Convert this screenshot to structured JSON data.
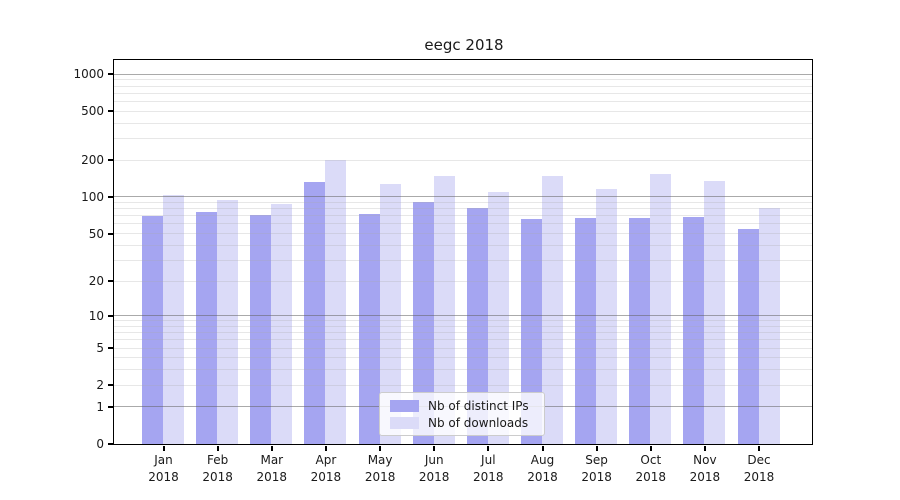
{
  "title": "eegc 2018",
  "chart_data": {
    "type": "bar",
    "title": "eegc 2018",
    "xlabel": "",
    "ylabel": "",
    "year_label": "2018",
    "categories": [
      "Jan",
      "Feb",
      "Mar",
      "Apr",
      "May",
      "Jun",
      "Jul",
      "Aug",
      "Sep",
      "Oct",
      "Nov",
      "Dec"
    ],
    "series": [
      {
        "name": "Nb of distinct IPs",
        "color": "#a5a5f1",
        "values": [
          69,
          74,
          70,
          131,
          72,
          90,
          80,
          65,
          67,
          67,
          68,
          54
        ]
      },
      {
        "name": "Nb of downloads",
        "color": "#dbdbf8",
        "values": [
          102,
          94,
          86,
          197,
          127,
          146,
          109,
          147,
          114,
          153,
          134,
          81
        ]
      }
    ],
    "y_axis": {
      "scale": "log1p",
      "ticks": [
        0,
        1,
        2,
        5,
        10,
        20,
        50,
        100,
        200,
        500,
        1000
      ],
      "major_gridlines": [
        1,
        10,
        100,
        1000
      ],
      "range_max": 1300
    },
    "legend": {
      "position": "lower-center",
      "items": [
        "Nb of distinct IPs",
        "Nb of downloads"
      ]
    },
    "grid": "on"
  }
}
